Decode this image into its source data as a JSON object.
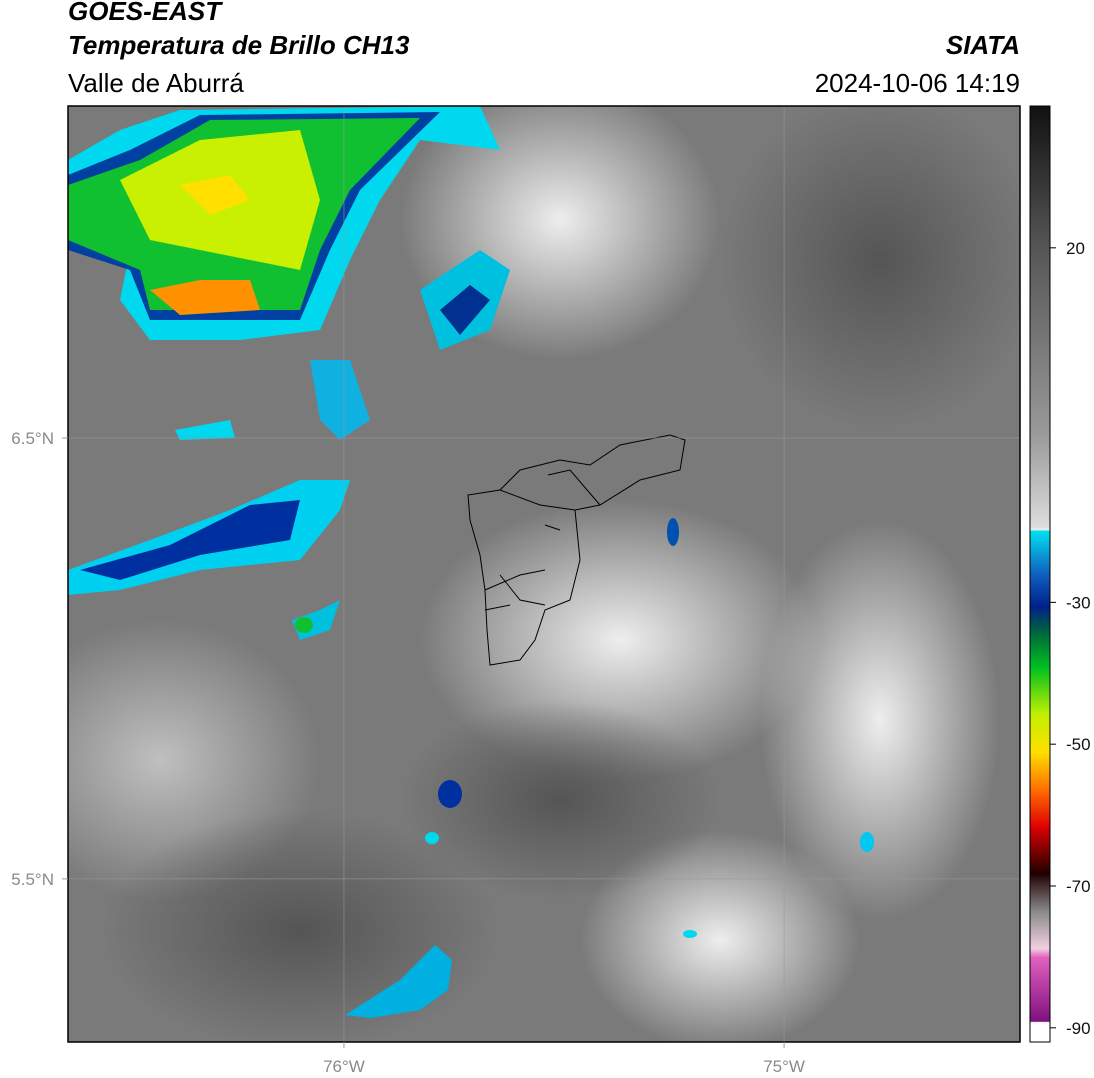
{
  "header": {
    "title": "GOES-EAST",
    "subtitle": "Temperatura de Brillo CH13",
    "region": "Valle de Aburrá",
    "source": "SIATA",
    "timestamp": "2024-10-06 14:19"
  },
  "map": {
    "xlim": [
      -76.627,
      -74.464
    ],
    "ylim": [
      5.13,
      7.253
    ],
    "xticks": [
      {
        "value": -76,
        "label": "76°W"
      },
      {
        "value": -75,
        "label": "75°W"
      }
    ],
    "yticks": [
      {
        "value": 5.5,
        "label": "5.5°N"
      },
      {
        "value": 6.5,
        "label": "6.5°N"
      }
    ],
    "grid": true
  },
  "colorbar": {
    "lim": [
      -92,
      40
    ],
    "ticks": [
      -90,
      -70,
      -50,
      -30,
      20
    ]
  }
}
